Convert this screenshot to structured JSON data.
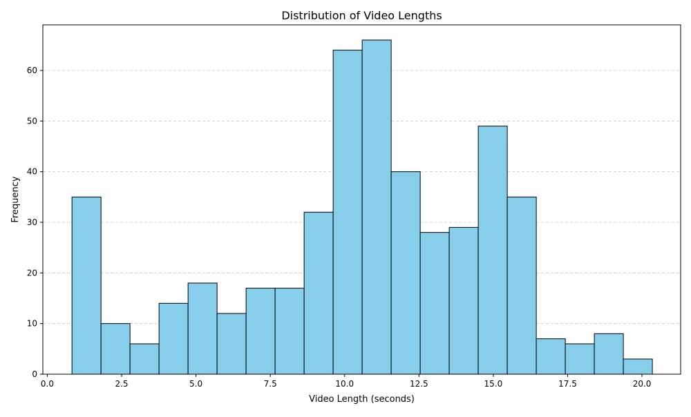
{
  "chart_data": {
    "type": "bar",
    "title": "Distribution of Video Lengths",
    "xlabel": "Video Length (seconds)",
    "ylabel": "Frequency",
    "bin_start": 0.83,
    "bin_width": 0.976,
    "values": [
      35,
      10,
      6,
      14,
      18,
      12,
      17,
      17,
      32,
      64,
      66,
      40,
      28,
      29,
      49,
      35,
      7,
      6,
      8,
      3
    ],
    "xlim": [
      -0.15,
      21.3
    ],
    "ylim": [
      0,
      69
    ],
    "xticks": [
      0.0,
      2.5,
      5.0,
      7.5,
      10.0,
      12.5,
      15.0,
      17.5,
      20.0
    ],
    "xtick_labels": [
      "0.0",
      "2.5",
      "5.0",
      "7.5",
      "10.0",
      "12.5",
      "15.0",
      "17.5",
      "20.0"
    ],
    "yticks": [
      0,
      10,
      20,
      30,
      40,
      50,
      60
    ],
    "ytick_labels": [
      "0",
      "10",
      "20",
      "30",
      "40",
      "50",
      "60"
    ],
    "grid": "y-dashed",
    "colors": {
      "bar_fill": "#87ceeb",
      "bar_edge": "#000000",
      "grid": "#c8c8c8"
    }
  }
}
